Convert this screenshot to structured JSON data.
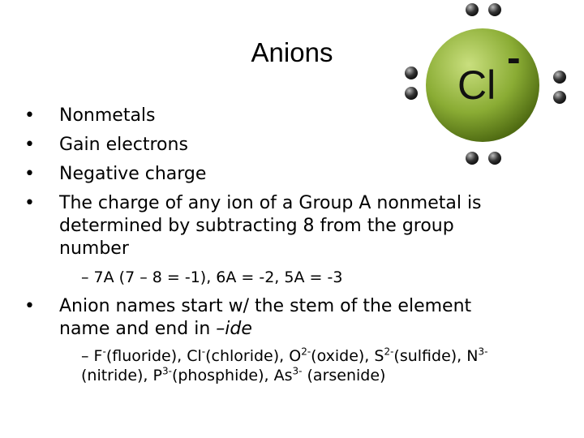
{
  "title": "Anions",
  "image": {
    "symbol": "Cl",
    "charge": "-"
  },
  "bullets": [
    "Nonmetals",
    "Gain electrons",
    "Negative charge",
    "The charge of any ion of a Group A nonmetal is determined by subtracting 8 from the group number"
  ],
  "sub_bullet_1": "– 7A (7 – 8 = -1), 6A = -2, 5A = -3",
  "bullet_5": {
    "text": "Anion names start w/ the stem of the element name and end in ",
    "emphasis": "–ide"
  },
  "sub_bullet_2": [
    {
      "text": "– F"
    },
    {
      "sup": "-"
    },
    {
      "text": "(fluoride), Cl"
    },
    {
      "sup": "-"
    },
    {
      "text": "(chloride), O"
    },
    {
      "sup": "2-"
    },
    {
      "text": "(oxide), S"
    },
    {
      "sup": "2-"
    },
    {
      "text": "(sulfide), N"
    },
    {
      "sup": "3-"
    },
    {
      "text": "(nitride), P"
    },
    {
      "sup": "3-"
    },
    {
      "text": "(phosphide), As"
    },
    {
      "sup": "3-"
    },
    {
      "text": " (arsenide)"
    }
  ]
}
